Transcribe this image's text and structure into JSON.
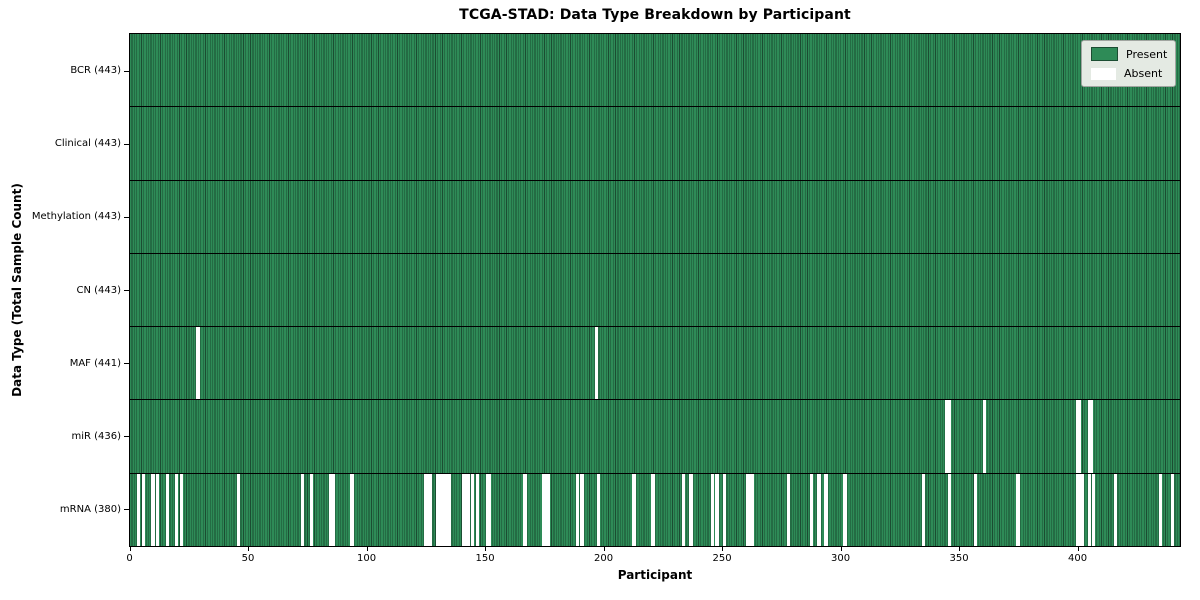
{
  "chart_data": {
    "type": "heatmap",
    "title": "TCGA-STAD: Data Type Breakdown by Participant",
    "xlabel": "Participant",
    "ylabel": "Data Type (Total Sample Count)",
    "x_ticks": [
      0,
      50,
      100,
      150,
      200,
      250,
      300,
      350,
      400
    ],
    "x_range": [
      0,
      443
    ],
    "n_participants": 443,
    "grid": false,
    "legend_position": "upper right",
    "legend": [
      {
        "label": "Present",
        "color": "#2e8b57"
      },
      {
        "label": "Absent",
        "color": "#ffffff"
      }
    ],
    "colors": {
      "present": "#2e8b57",
      "cell_edge": "#1b4d32",
      "absent": "#ffffff",
      "row_separator": "#000000",
      "axis": "#000000"
    },
    "rows": [
      {
        "name": "BCR",
        "label": "BCR (443)",
        "present_count": 443,
        "absent_participants": []
      },
      {
        "name": "Clinical",
        "label": "Clinical (443)",
        "present_count": 443,
        "absent_participants": []
      },
      {
        "name": "Methylation",
        "label": "Methylation (443)",
        "present_count": 443,
        "absent_participants": []
      },
      {
        "name": "CN",
        "label": "CN (443)",
        "present_count": 443,
        "absent_participants": []
      },
      {
        "name": "MAF",
        "label": "MAF (441)",
        "present_count": 441,
        "absent_participants": [
          28,
          196
        ]
      },
      {
        "name": "miR",
        "label": "miR (436)",
        "present_count": 436,
        "absent_participants": [
          344,
          345,
          360,
          399,
          400,
          404,
          405
        ]
      },
      {
        "name": "mRNA",
        "label": "mRNA (380)",
        "present_count": 380,
        "absent_participants": [
          3,
          5,
          9,
          11,
          15,
          19,
          21,
          45,
          72,
          76,
          84,
          85,
          93,
          124,
          125,
          126,
          129,
          130,
          131,
          132,
          133,
          134,
          140,
          141,
          142,
          144,
          146,
          150,
          151,
          166,
          174,
          175,
          176,
          188,
          190,
          197,
          212,
          220,
          233,
          236,
          245,
          247,
          250,
          260,
          261,
          262,
          277,
          287,
          290,
          293,
          301,
          334,
          345,
          356,
          374,
          399,
          400,
          401,
          404,
          406,
          415,
          434,
          439
        ]
      }
    ]
  }
}
